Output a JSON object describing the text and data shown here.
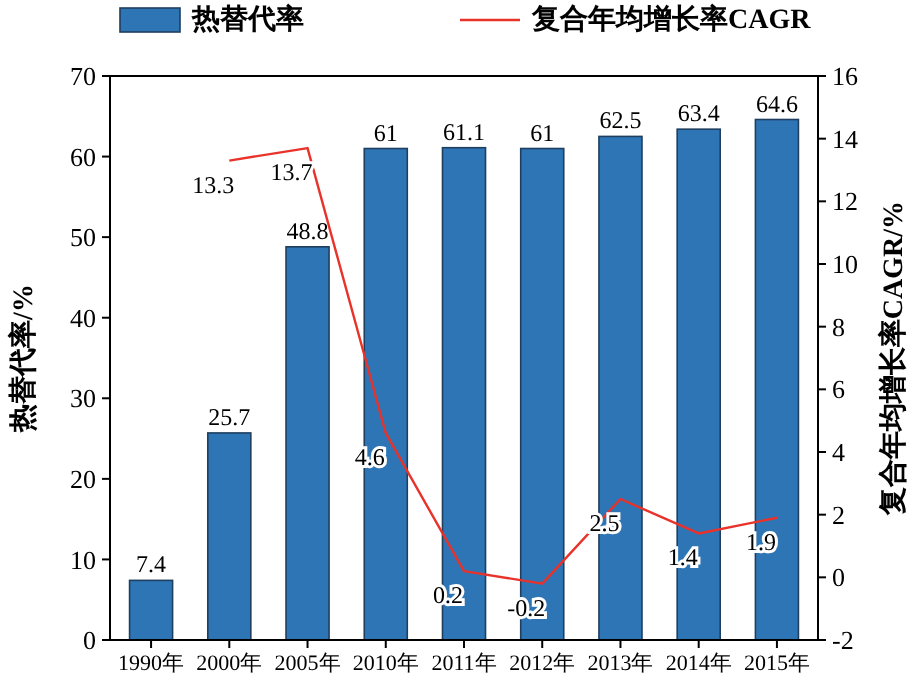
{
  "chart_data": {
    "type": "bar",
    "categories": [
      "1990年",
      "2000年",
      "2005年",
      "2010年",
      "2011年",
      "2012年",
      "2013年",
      "2014年",
      "2015年"
    ],
    "series": [
      {
        "name": "热替代率",
        "color": "#2e75b6",
        "values": [
          7.4,
          25.7,
          48.8,
          61,
          61.1,
          61,
          62.5,
          63.4,
          64.6
        ]
      },
      {
        "name": "复合年均增长率CAGR",
        "type": "line",
        "axis": "y2",
        "color": "#e8322a",
        "values": [
          null,
          13.3,
          13.7,
          4.6,
          0.2,
          -0.2,
          2.5,
          1.4,
          1.9
        ]
      }
    ],
    "ylabel": "热替代率/%",
    "y2label": "复合年均增长率CAGR/%",
    "ylim": [
      0,
      70
    ],
    "yticks": [
      0,
      10,
      20,
      30,
      40,
      50,
      60,
      70
    ],
    "y2lim": [
      -2,
      16
    ],
    "y2ticks": [
      -2,
      0,
      2,
      4,
      6,
      8,
      10,
      12,
      14,
      16
    ],
    "data_labels": true,
    "legend": "top",
    "grid": false,
    "marker": "none",
    "line_style": "solid"
  }
}
